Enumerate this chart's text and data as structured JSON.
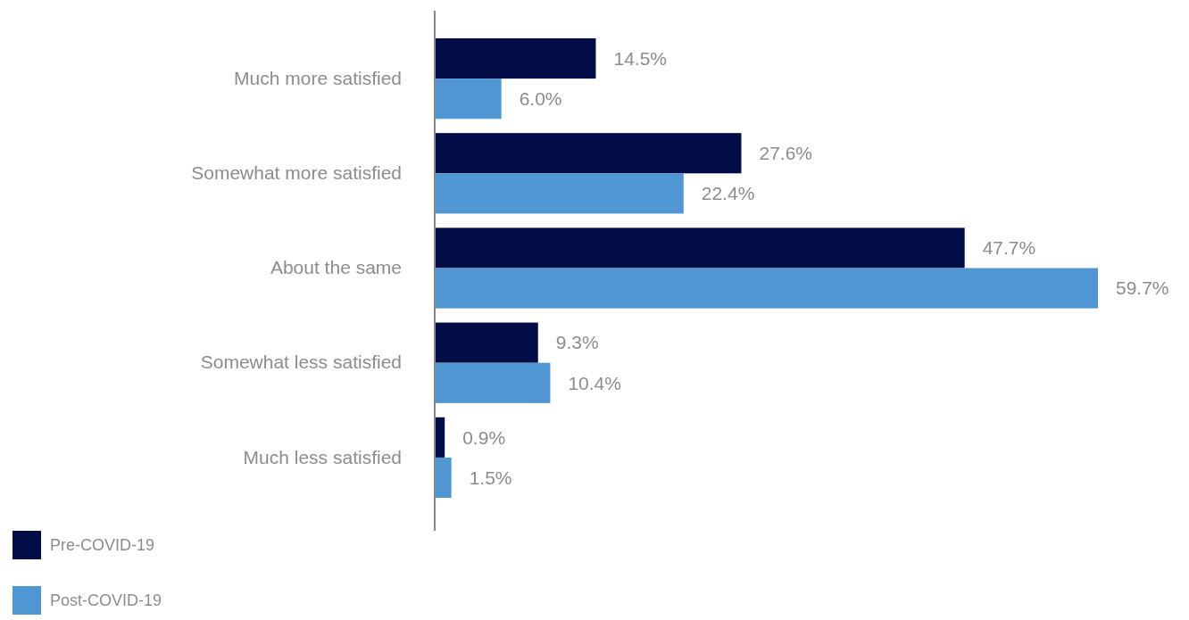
{
  "chart_data": {
    "type": "bar",
    "orientation": "horizontal",
    "categories": [
      "Much more satisfied",
      "Somewhat more satisfied",
      "About the same",
      "Somewhat less satisfied",
      "Much less satisfied"
    ],
    "series": [
      {
        "name": "Pre-COVID-19",
        "color": "#020d48",
        "values": [
          14.5,
          27.6,
          47.7,
          9.3,
          0.9
        ],
        "value_labels": [
          "14.5%",
          "27.6%",
          "47.7%",
          "9.3%",
          "0.9%"
        ]
      },
      {
        "name": "Post-COVID-19",
        "color": "#5096d2",
        "values": [
          6.0,
          22.4,
          59.7,
          10.4,
          1.5
        ],
        "value_labels": [
          "6.0%",
          "22.4%",
          "59.7%",
          "10.4%",
          "1.5%"
        ]
      }
    ],
    "legend": "bottom left"
  }
}
